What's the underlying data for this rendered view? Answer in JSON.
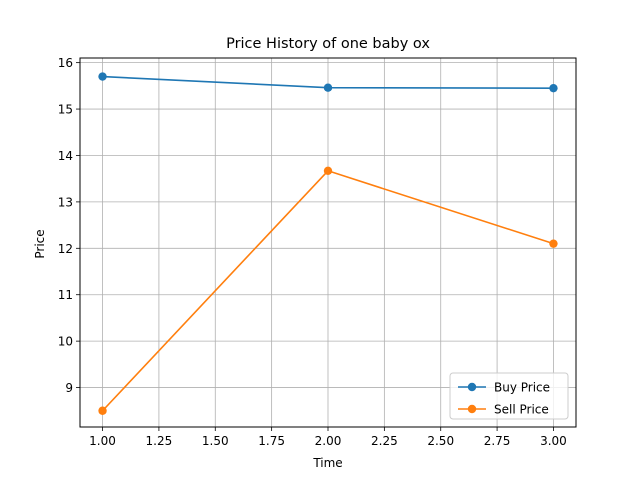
{
  "chart_data": {
    "type": "line",
    "title": "Price History of one baby ox",
    "xlabel": "Time",
    "ylabel": "Price",
    "xlim": [
      0.9,
      3.1
    ],
    "ylim": [
      8.15,
      16.1
    ],
    "xticks": [
      1.0,
      1.25,
      1.5,
      1.75,
      2.0,
      2.25,
      2.5,
      2.75,
      3.0
    ],
    "xtick_labels": [
      "1.00",
      "1.25",
      "1.50",
      "1.75",
      "2.00",
      "2.25",
      "2.50",
      "2.75",
      "3.00"
    ],
    "yticks": [
      9,
      10,
      11,
      12,
      13,
      14,
      15,
      16
    ],
    "ytick_labels": [
      "9",
      "10",
      "11",
      "12",
      "13",
      "14",
      "15",
      "16"
    ],
    "grid": true,
    "legend_position": "lower-right",
    "series": [
      {
        "name": "Buy Price",
        "color": "#1f77b4",
        "x": [
          1,
          2,
          3
        ],
        "y": [
          15.7,
          15.46,
          15.45
        ]
      },
      {
        "name": "Sell Price",
        "color": "#ff7f0e",
        "x": [
          1,
          2,
          3
        ],
        "y": [
          8.5,
          13.67,
          12.1
        ]
      }
    ]
  }
}
